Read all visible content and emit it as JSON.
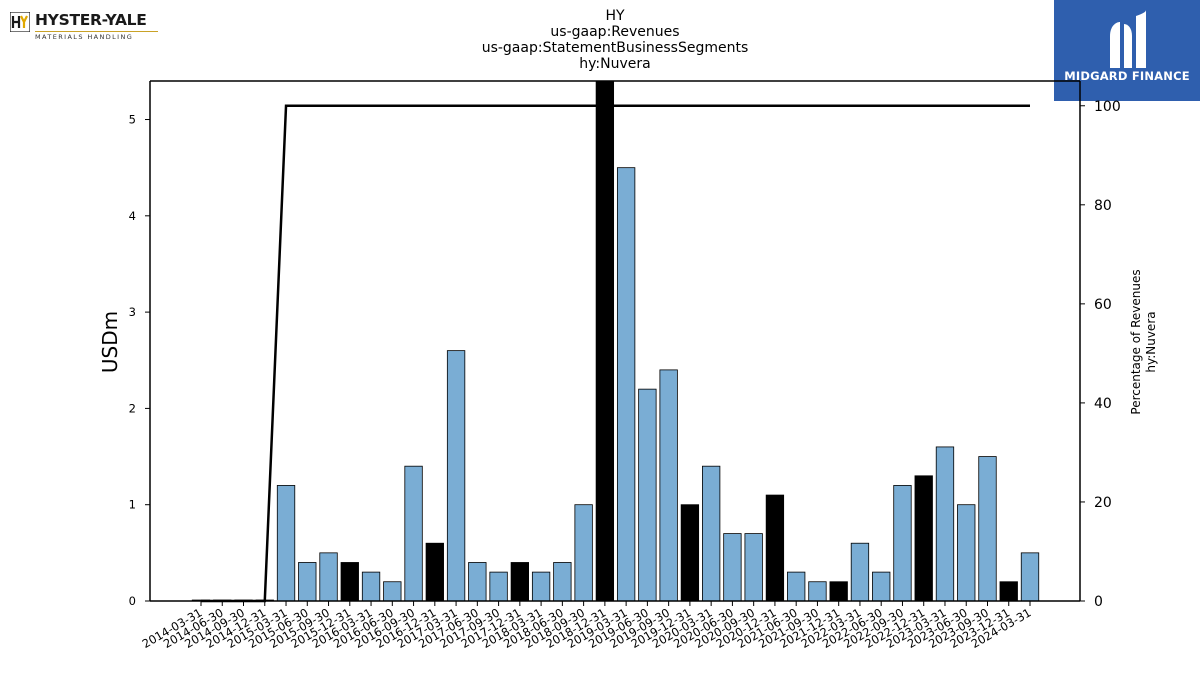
{
  "branding": {
    "left_logo_name": "HYSTER-YALE",
    "left_logo_sub": "MATERIALS HANDLING",
    "right_logo_name": "MIDGARD FINANCE"
  },
  "chart_data": {
    "type": "bar",
    "title_lines": [
      "HY",
      "us-gaap:Revenues",
      "us-gaap:StatementBusinessSegments",
      "hy:Nuvera"
    ],
    "ylabel": "USDm",
    "y2label_lines": [
      "Percentage of Revenues",
      "hy:Nuvera"
    ],
    "ylim": [
      0,
      5.4
    ],
    "y2lim": [
      0,
      105
    ],
    "yticks": [
      0,
      1,
      2,
      3,
      4,
      5
    ],
    "y2ticks": [
      0,
      20,
      40,
      60,
      80,
      100
    ],
    "categories": [
      "2014-03-31",
      "2014-06-30",
      "2014-09-30",
      "2014-12-31",
      "2015-03-31",
      "2015-06-30",
      "2015-09-30",
      "2015-12-31",
      "2016-03-31",
      "2016-06-30",
      "2016-09-30",
      "2016-12-31",
      "2017-03-31",
      "2017-06-30",
      "2017-09-30",
      "2017-12-31",
      "2018-03-31",
      "2018-06-30",
      "2018-09-30",
      "2018-12-31",
      "2019-03-31",
      "2019-06-30",
      "2019-09-30",
      "2019-12-31",
      "2020-03-31",
      "2020-06-30",
      "2020-09-30",
      "2020-12-31",
      "2021-06-30",
      "2021-09-30",
      "2021-12-31",
      "2022-03-31",
      "2022-06-30",
      "2022-09-30",
      "2022-12-31",
      "2023-03-31",
      "2023-06-30",
      "2023-09-30",
      "2023-12-31",
      "2024-03-31"
    ],
    "values": [
      0.01,
      0.01,
      0.01,
      0.01,
      1.2,
      0.4,
      0.5,
      0.4,
      0.3,
      0.2,
      1.4,
      0.6,
      2.6,
      0.4,
      0.3,
      0.4,
      0.3,
      0.4,
      1.0,
      6.0,
      4.5,
      2.2,
      2.4,
      1.0,
      1.4,
      0.7,
      0.7,
      1.1,
      0.3,
      0.2,
      0.2,
      0.6,
      0.3,
      1.2,
      1.3,
      1.6,
      1.0,
      1.5,
      0.2,
      0.5
    ],
    "bar_colors": [
      "#7aadd4",
      "#7aadd4",
      "#7aadd4",
      "#000000",
      "#7aadd4",
      "#7aadd4",
      "#7aadd4",
      "#000000",
      "#7aadd4",
      "#7aadd4",
      "#7aadd4",
      "#000000",
      "#7aadd4",
      "#7aadd4",
      "#7aadd4",
      "#000000",
      "#7aadd4",
      "#7aadd4",
      "#7aadd4",
      "#000000",
      "#7aadd4",
      "#7aadd4",
      "#7aadd4",
      "#000000",
      "#7aadd4",
      "#7aadd4",
      "#7aadd4",
      "#000000",
      "#7aadd4",
      "#7aadd4",
      "#000000",
      "#7aadd4",
      "#7aadd4",
      "#7aadd4",
      "#000000",
      "#7aadd4",
      "#7aadd4",
      "#7aadd4",
      "#000000",
      "#7aadd4"
    ],
    "percentage_line": [
      0,
      0,
      0,
      0,
      100,
      100,
      100,
      100,
      100,
      100,
      100,
      100,
      100,
      100,
      100,
      100,
      100,
      100,
      100,
      100,
      100,
      100,
      100,
      100,
      100,
      100,
      100,
      100,
      100,
      100,
      100,
      100,
      100,
      100,
      100,
      100,
      100,
      100,
      100,
      100
    ],
    "colors": {
      "bar_primary": "#7aadd4",
      "bar_year_end": "#000000",
      "line": "#000000"
    },
    "grid": false
  }
}
